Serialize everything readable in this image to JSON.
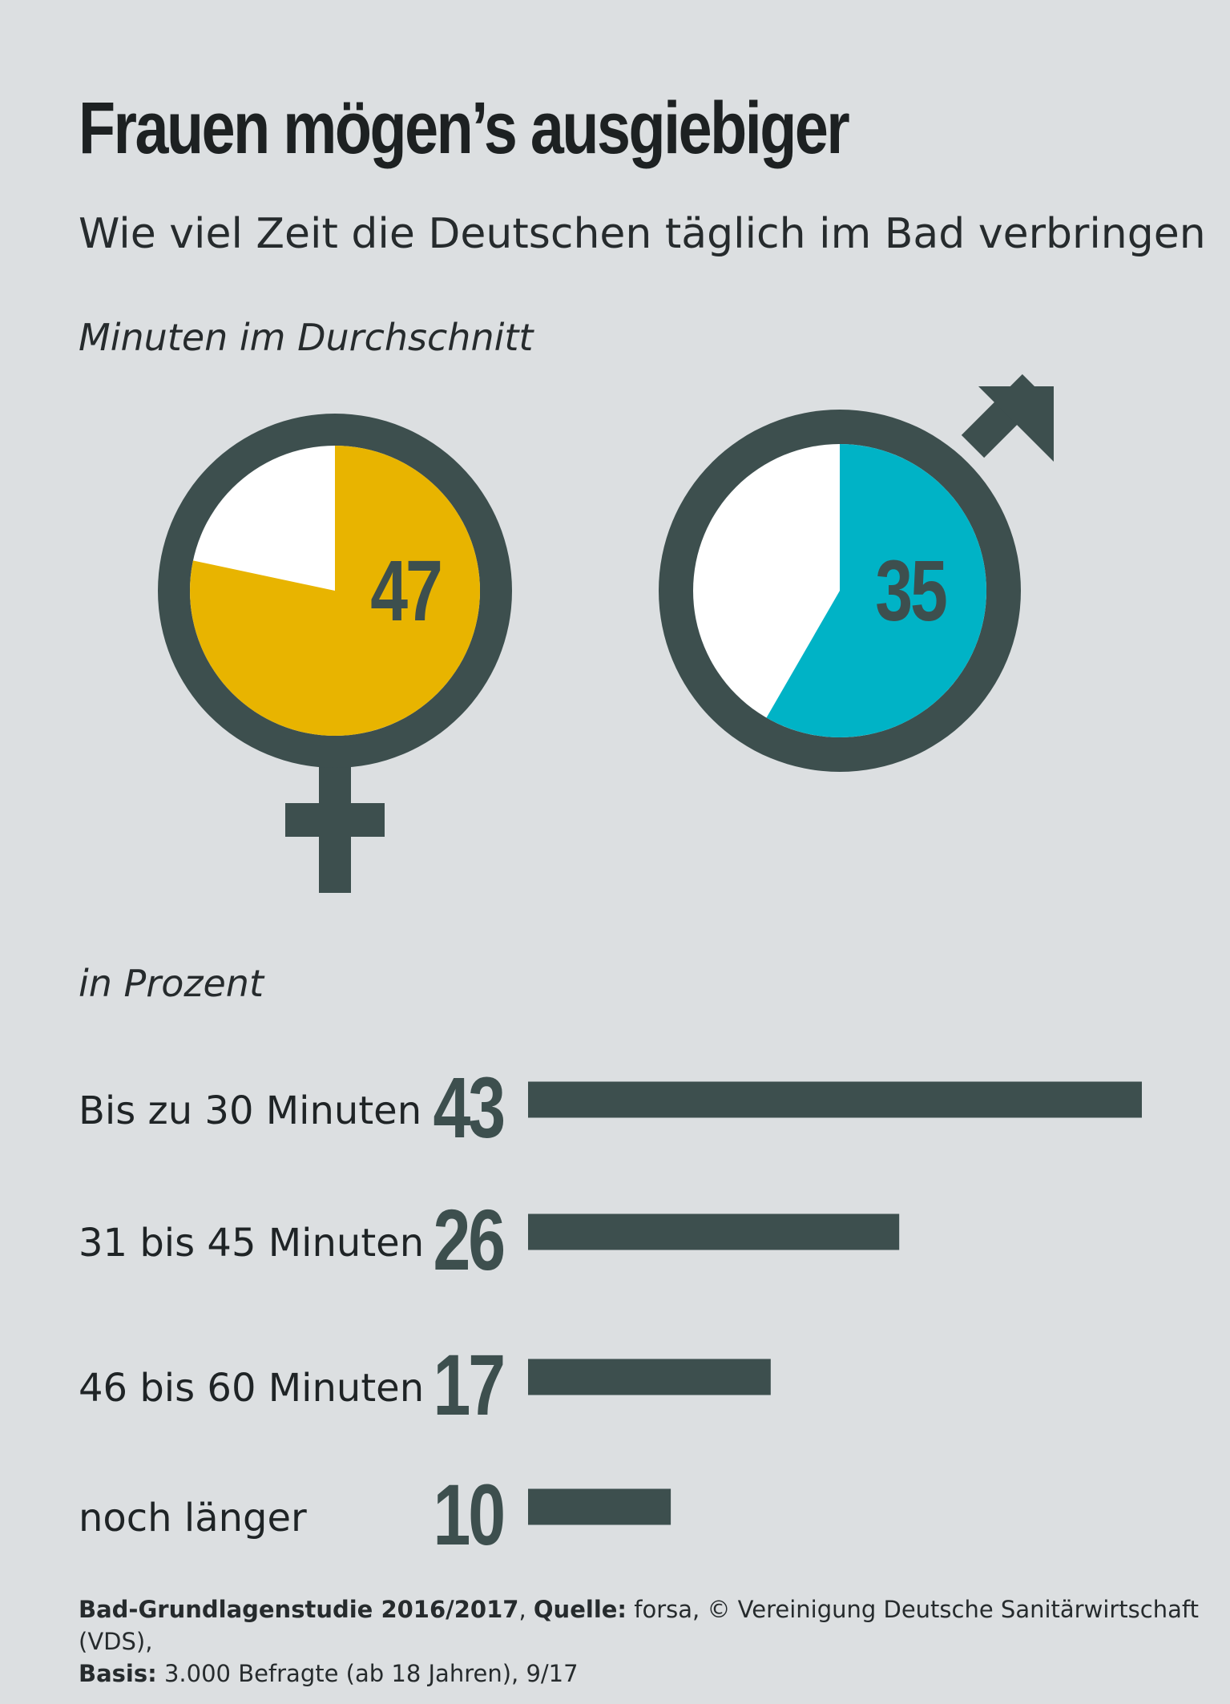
{
  "title": "Frauen mögen’s ausgiebiger",
  "subtitle": "Wie viel Zeit die Deutschen täglich im Bad verbringen",
  "section1_unit": "Minuten im Durchschnitt",
  "section2_unit": "in Prozent",
  "colors": {
    "dark": "#3d4f4e",
    "women": "#e8b400",
    "men": "#00b3c6",
    "background": "#dcdfe1",
    "white": "#ffffff"
  },
  "chart_data": [
    {
      "type": "pie",
      "title": "",
      "series": [
        {
          "name": "Frauen",
          "symbol": "female-symbol",
          "value": 47,
          "max": 60,
          "label": "47"
        },
        {
          "name": "Männer",
          "symbol": "male-symbol",
          "value": 35,
          "max": 60,
          "label": "35"
        }
      ]
    },
    {
      "type": "bar",
      "orientation": "horizontal",
      "categories": [
        "Bis zu 30 Minuten",
        "31 bis 45 Minuten",
        "46 bis 60 Minuten",
        "noch länger"
      ],
      "values": [
        43,
        26,
        17,
        10
      ],
      "value_labels": [
        "43",
        "26",
        "17",
        "10"
      ]
    }
  ],
  "source": {
    "study_label": "Bad-Grundlagenstudie 2016/2017",
    "sep1": ", ",
    "source_label": "Quelle:",
    "source_text": " forsa, © Vereinigung Deutsche Sanitärwirtschaft (VDS),",
    "basis_label": "Basis:",
    "basis_text": " 3.000 Befragte (ab 18 Jahren), 9/17"
  }
}
